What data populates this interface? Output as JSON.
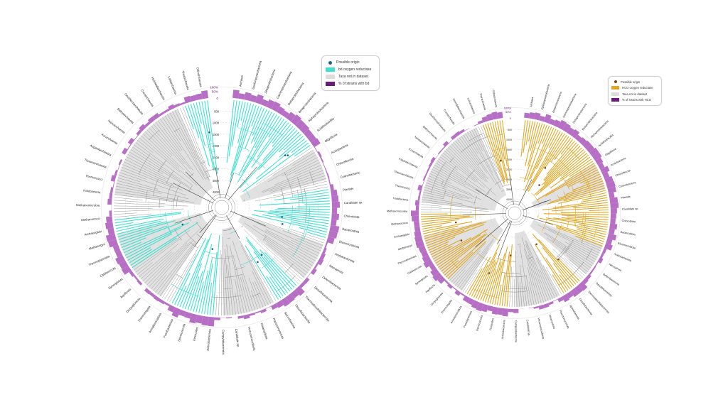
{
  "colors": {
    "enzyme_left": "#40e0d0",
    "enzyme_right": "#e0a826",
    "not_in_dataset": "#dcdcdc",
    "strain_pct": "#b66fc4",
    "strain_pct_legend": "#6a1b7a",
    "origin_left": "#1f5f8b",
    "origin_right": "#7a4a12",
    "branch": "#9a9a9a",
    "dark_branch": "#555555"
  },
  "trees": [
    {
      "legend": {
        "possible_origin": "Possible origin",
        "enzyme": "bd oxygen reductase",
        "not_in_dataset": "Taxa not in dataset",
        "strain_pct": "% of strains with bd"
      },
      "scale": {
        "pct_100": "100%",
        "pct_50": "50%",
        "zero": "0"
      },
      "time_ticks": [
        "500",
        "1000",
        "1500",
        "2000",
        "2500",
        "3000",
        "3500",
        "4000"
      ],
      "taxa": [
        "Archaea",
        "Epsilonproteobacteria",
        "Zetaproteobacteria",
        "Gammaproteobacteria",
        "Deltaproteobacteria",
        "Betaproteobacteria",
        "Alphaproteobacteria",
        "Acidithiobacillia",
        "Oligoflexia",
        "Acidobacteria",
        "Chloroflexota",
        "Cyanobacteria",
        "Plastids",
        "Candidate sp.",
        "Chlorobiota",
        "Bacteroidota",
        "Elusimicrobiota",
        "Acidobacteriota",
        "Nitrospirota",
        "Deferribacterota",
        "Desulfobacterota",
        "Thermodesulfobacteriota",
        "Desulfobacterota",
        "Spirochaetota",
        "Planctomycetota",
        "Chlamydiota",
        "Verrucomicrobiota",
        "Candidate sp.",
        "Campylobacterota",
        "Actinobacteriota",
        "Firmicutes",
        "Deinococcota",
        "Fusobacteriota",
        "Armatimonadota",
        "Thermotogota",
        "Dictyoglomota",
        "Aquificota",
        "Synergistota",
        "Caldisericota",
        "Thermoplasmata",
        "Methanopyri",
        "Archaeoglobi",
        "Methanococci",
        "Methanomicrobia",
        "Halobacteria",
        "Thermococci",
        "Thaumarchaeota",
        "Asgardarchaeota",
        "Korarchaeota",
        "Nanoarchaeota",
        "Bathyarchaeota",
        "Geothermarchaeota",
        "Crenarchaeota",
        "Heimdallarchaeota",
        "Lokiarchaeota",
        "Thorarchaeota",
        "Odinarchaeota"
      ]
    },
    {
      "legend": {
        "possible_origin": "Possible origin",
        "enzyme": "HCO oxygen reductase",
        "not_in_dataset": "Taxa not in dataset",
        "strain_pct": "% of strains with HCO"
      },
      "scale": {
        "pct_100": "100%",
        "pct_50": "50%",
        "zero": "0"
      },
      "time_ticks": [
        "500",
        "1000",
        "1500",
        "2000",
        "2500",
        "3000",
        "3500",
        "4000"
      ],
      "taxa": [
        "Archaea",
        "Epsilonproteobacteria",
        "Zetaproteobacteria",
        "Gammaproteobacteria",
        "Deltaproteobacteria",
        "Betaproteobacteria",
        "Alphaproteobacteria",
        "Acidithiobacillia",
        "Oligoflexia",
        "Acidobacteria",
        "Chloroflexota",
        "Cyanobacteria",
        "Plastids",
        "Candidate sp.",
        "Chlorobiota",
        "Bacteroidota",
        "Elusimicrobiota",
        "Acidobacteriota",
        "Nitrospirota",
        "Deferribacterota",
        "Desulfobacterota",
        "Thermodesulfobacteriota",
        "Desulfobacterota",
        "Spirochaetota",
        "Planctomycetota",
        "Chlamydiota",
        "Verrucomicrobiota",
        "Candidate sp.",
        "Campylobacterota",
        "Actinobacteriota",
        "Firmicutes",
        "Deinococcota",
        "Fusobacteriota",
        "Armatimonadota",
        "Thermotogota",
        "Dictyoglomota",
        "Aquificota",
        "Synergistota",
        "Caldisericota",
        "Thermoplasmata",
        "Methanopyri",
        "Archaeoglobi",
        "Methanococci",
        "Methanomicrobia",
        "Halobacteria",
        "Thermococci",
        "Thaumarchaeota",
        "Asgardarchaeota",
        "Korarchaeota",
        "Nanoarchaeota",
        "Bathyarchaeota",
        "Geothermarchaeota",
        "Crenarchaeota",
        "Heimdallarchaeota",
        "Lokiarchaeota",
        "Thorarchaeota",
        "Odinarchaeota"
      ]
    }
  ]
}
